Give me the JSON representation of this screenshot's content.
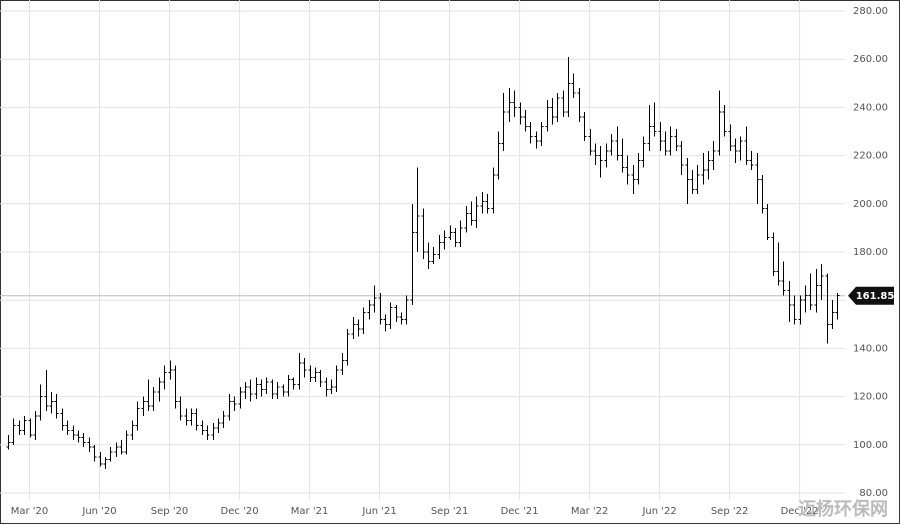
{
  "chart_data": {
    "type": "ohlc",
    "color": "#000000",
    "grid": true,
    "watermark": "迈杨环保网",
    "categories": [
      null,
      null,
      null,
      null,
      "Mar '20",
      null,
      null,
      null,
      null,
      null,
      null,
      null,
      null,
      null,
      null,
      null,
      null,
      "Jun '20",
      null,
      null,
      null,
      null,
      null,
      null,
      null,
      null,
      null,
      null,
      null,
      null,
      "Sep '20",
      null,
      null,
      null,
      null,
      null,
      null,
      null,
      null,
      null,
      null,
      null,
      null,
      "Dec '20",
      null,
      null,
      null,
      null,
      null,
      null,
      null,
      null,
      null,
      null,
      null,
      null,
      "Mar '21",
      null,
      null,
      null,
      null,
      null,
      null,
      null,
      null,
      null,
      null,
      null,
      null,
      "Jun '21",
      null,
      null,
      null,
      null,
      null,
      null,
      null,
      null,
      null,
      null,
      null,
      null,
      "Sep '21",
      null,
      null,
      null,
      null,
      null,
      null,
      null,
      null,
      null,
      null,
      null,
      null,
      "Dec '21",
      null,
      null,
      null,
      null,
      null,
      null,
      null,
      null,
      null,
      null,
      null,
      null,
      "Mar '22",
      null,
      null,
      null,
      null,
      null,
      null,
      null,
      null,
      null,
      null,
      null,
      null,
      "Jun '22",
      null,
      null,
      null,
      null,
      null,
      null,
      null,
      null,
      null,
      null,
      null,
      null,
      "Sep '22",
      null,
      null,
      null,
      null,
      null,
      null,
      null,
      null,
      null,
      null,
      null,
      null,
      "Dec '22",
      null,
      null,
      null,
      null,
      null,
      null,
      null
    ],
    "open": [
      99,
      101,
      108,
      106,
      110,
      104,
      112,
      120,
      116,
      118,
      113,
      108,
      106,
      104,
      103,
      101,
      99,
      95,
      92,
      94,
      97,
      99,
      97,
      104,
      108,
      115,
      118,
      116,
      122,
      126,
      130,
      131,
      118,
      112,
      110,
      113,
      108,
      106,
      104,
      107,
      109,
      112,
      118,
      117,
      122,
      124,
      121,
      125,
      123,
      126,
      121,
      124,
      122,
      127,
      125,
      134,
      131,
      128,
      130,
      126,
      123,
      124,
      131,
      135,
      146,
      150,
      148,
      155,
      158,
      161,
      152,
      150,
      157,
      153,
      152,
      160,
      188,
      195,
      180,
      176,
      179,
      184,
      186,
      188,
      184,
      190,
      196,
      193,
      199,
      201,
      198,
      212,
      225,
      238,
      242,
      240,
      236,
      232,
      228,
      226,
      232,
      240,
      236,
      244,
      238,
      250,
      246,
      236,
      228,
      222,
      220,
      218,
      222,
      226,
      220,
      215,
      212,
      210,
      218,
      225,
      232,
      230,
      226,
      222,
      228,
      224,
      216,
      210,
      206,
      212,
      214,
      218,
      222,
      238,
      230,
      224,
      222,
      226,
      218,
      216,
      210,
      198,
      186,
      172,
      168,
      164,
      158,
      152,
      160,
      162,
      158,
      166,
      170,
      150,
      155
    ],
    "high": [
      104,
      111,
      110,
      112,
      111,
      114,
      125,
      131,
      122,
      121,
      115,
      110,
      108,
      106,
      105,
      103,
      100,
      97,
      95,
      99,
      101,
      102,
      106,
      110,
      118,
      120,
      127,
      124,
      128,
      133,
      135,
      133,
      120,
      115,
      115,
      115,
      110,
      108,
      109,
      111,
      114,
      121,
      120,
      124,
      126,
      127,
      128,
      127,
      128,
      127,
      126,
      125,
      129,
      128,
      138,
      136,
      133,
      132,
      131,
      128,
      127,
      133,
      138,
      148,
      153,
      152,
      157,
      160,
      166,
      163,
      154,
      159,
      158,
      155,
      162,
      200,
      215,
      198,
      184,
      182,
      187,
      189,
      191,
      190,
      193,
      199,
      201,
      203,
      205,
      204,
      215,
      230,
      246,
      248,
      247,
      242,
      239,
      234,
      230,
      234,
      243,
      244,
      246,
      247,
      261,
      254,
      248,
      238,
      231,
      225,
      224,
      225,
      229,
      232,
      227,
      220,
      216,
      221,
      228,
      241,
      242,
      234,
      230,
      232,
      231,
      226,
      219,
      214,
      216,
      221,
      222,
      226,
      247,
      241,
      233,
      227,
      228,
      232,
      222,
      221,
      212,
      200,
      188,
      184,
      176,
      168,
      162,
      162,
      166,
      171,
      173,
      175,
      171,
      160,
      163
    ],
    "low": [
      98,
      100,
      104,
      104,
      103,
      102,
      110,
      114,
      113,
      111,
      106,
      104,
      102,
      101,
      99,
      97,
      93,
      91,
      90,
      93,
      95,
      96,
      96,
      102,
      106,
      112,
      114,
      114,
      118,
      123,
      127,
      115,
      110,
      108,
      108,
      106,
      104,
      102,
      102,
      105,
      107,
      110,
      114,
      115,
      119,
      118,
      119,
      120,
      121,
      119,
      119,
      120,
      120,
      123,
      123,
      128,
      126,
      126,
      124,
      120,
      121,
      122,
      129,
      133,
      144,
      145,
      146,
      152,
      155,
      150,
      147,
      148,
      151,
      150,
      150,
      158,
      180,
      177,
      173,
      175,
      177,
      181,
      185,
      182,
      182,
      188,
      191,
      190,
      196,
      196,
      196,
      210,
      222,
      234,
      236,
      233,
      230,
      225,
      223,
      224,
      230,
      233,
      234,
      236,
      236,
      244,
      234,
      226,
      220,
      216,
      211,
      215,
      220,
      218,
      213,
      208,
      204,
      208,
      215,
      222,
      228,
      222,
      220,
      220,
      222,
      212,
      200,
      204,
      204,
      208,
      210,
      214,
      220,
      228,
      222,
      217,
      218,
      216,
      214,
      200,
      196,
      185,
      170,
      166,
      162,
      151,
      150,
      150,
      155,
      156,
      155,
      160,
      142,
      148,
      152
    ],
    "close": [
      101,
      108,
      106,
      110,
      104,
      112,
      120,
      116,
      118,
      113,
      108,
      106,
      104,
      103,
      101,
      99,
      95,
      92,
      94,
      97,
      99,
      97,
      104,
      108,
      115,
      118,
      116,
      122,
      126,
      130,
      131,
      118,
      112,
      110,
      113,
      108,
      106,
      104,
      107,
      109,
      112,
      118,
      117,
      122,
      124,
      121,
      125,
      123,
      126,
      121,
      124,
      122,
      127,
      125,
      134,
      131,
      128,
      130,
      126,
      123,
      124,
      131,
      135,
      146,
      150,
      148,
      155,
      158,
      161,
      152,
      150,
      157,
      153,
      152,
      160,
      188,
      195,
      180,
      176,
      179,
      184,
      186,
      188,
      184,
      190,
      196,
      193,
      199,
      201,
      198,
      212,
      225,
      238,
      242,
      240,
      236,
      232,
      228,
      226,
      232,
      240,
      236,
      244,
      238,
      250,
      246,
      236,
      228,
      222,
      220,
      218,
      222,
      226,
      220,
      215,
      212,
      210,
      218,
      225,
      232,
      230,
      226,
      222,
      228,
      224,
      216,
      210,
      206,
      212,
      214,
      218,
      222,
      238,
      230,
      224,
      222,
      226,
      218,
      216,
      210,
      198,
      186,
      172,
      168,
      164,
      158,
      152,
      160,
      162,
      158,
      166,
      170,
      150,
      155,
      161.85
    ],
    "ylim": [
      80,
      280
    ],
    "yticks": [
      {
        "value": 80,
        "label": "80.00"
      },
      {
        "value": 100,
        "label": "100.00"
      },
      {
        "value": 120,
        "label": "120.00"
      },
      {
        "value": 140,
        "label": "140.00"
      },
      {
        "value": 160,
        "label": "160.00"
      },
      {
        "value": 180,
        "label": "180.00"
      },
      {
        "value": 200,
        "label": "200.00"
      },
      {
        "value": 220,
        "label": "220.00"
      },
      {
        "value": 240,
        "label": "240.00"
      },
      {
        "value": 260,
        "label": "260.00"
      },
      {
        "value": 280,
        "label": "280.00"
      }
    ]
  }
}
